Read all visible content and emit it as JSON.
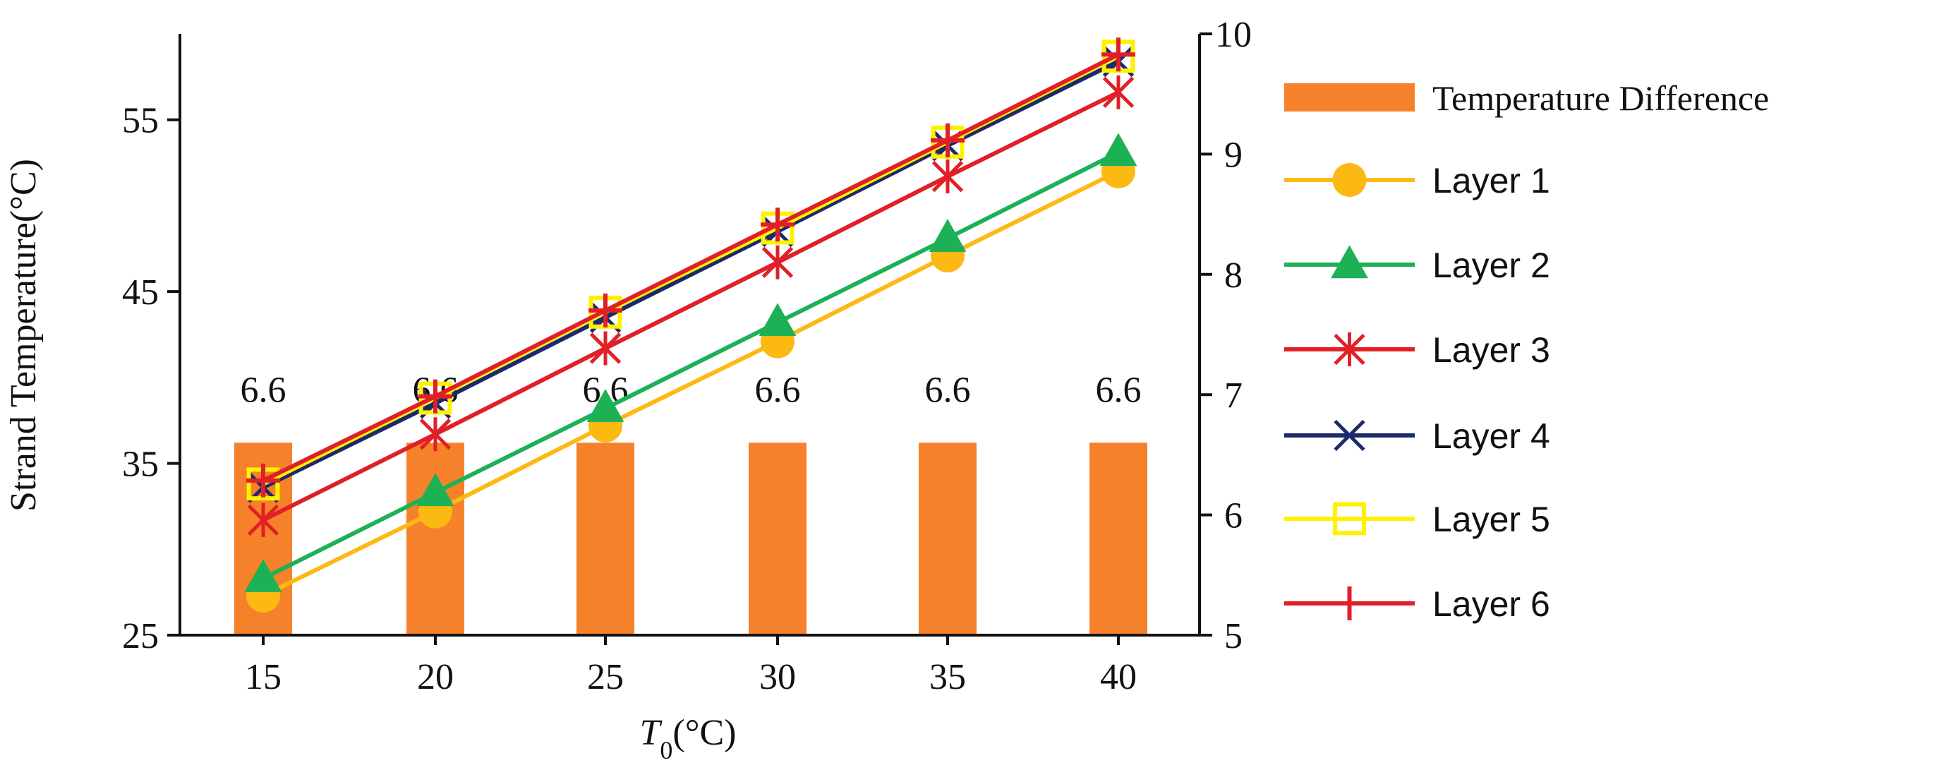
{
  "chart_data": {
    "type": "bar-line-combo",
    "x": [
      15,
      20,
      25,
      30,
      35,
      40
    ],
    "x_ticks": [
      "15",
      "20",
      "25",
      "30",
      "35",
      "40"
    ],
    "xlabel_italic": "T",
    "xlabel_sub": "0",
    "xlabel_rest": "(°C)",
    "ylabel": "Strand Temperature(°C)",
    "ylim": [
      25,
      60
    ],
    "y_ticks": [
      "25",
      "35",
      "45",
      "55"
    ],
    "y_tick_values": [
      25,
      35,
      45,
      55
    ],
    "y2lim": [
      5,
      10
    ],
    "y2_ticks": [
      "5",
      "6",
      "7",
      "8",
      "9",
      "10"
    ],
    "y2_tick_values": [
      5,
      6,
      7,
      8,
      9,
      10
    ],
    "bars": {
      "name": "Temperature Difference",
      "axis": "right",
      "color": "#F5822A",
      "values": [
        6.6,
        6.6,
        6.6,
        6.6,
        6.6,
        6.6
      ],
      "labels": [
        "6.6",
        "6.6",
        "6.6",
        "6.6",
        "6.6",
        "6.6"
      ]
    },
    "series": [
      {
        "name": "Layer 1",
        "color": "#FDB913",
        "marker": "circle",
        "values": [
          27.3,
          32.2,
          37.2,
          42.1,
          47.1,
          52.0
        ]
      },
      {
        "name": "Layer 2",
        "color": "#1DB155",
        "marker": "triangle",
        "values": [
          28.3,
          33.3,
          38.2,
          43.2,
          48.1,
          53.1
        ]
      },
      {
        "name": "Layer 3",
        "color": "#E11F26",
        "marker": "asterisk",
        "values": [
          31.7,
          36.7,
          41.7,
          46.7,
          51.7,
          56.6
        ]
      },
      {
        "name": "Layer 4",
        "color": "#1C2A6B",
        "marker": "x",
        "values": [
          33.6,
          38.5,
          43.5,
          48.5,
          53.5,
          58.4
        ]
      },
      {
        "name": "Layer 5",
        "color": "#FFF200",
        "marker": "square",
        "values": [
          33.8,
          38.8,
          43.8,
          48.7,
          53.7,
          58.7
        ]
      },
      {
        "name": "Layer 6",
        "color": "#E11F26",
        "marker": "plus",
        "values": [
          34.0,
          38.9,
          43.9,
          48.9,
          53.8,
          58.8
        ]
      }
    ]
  }
}
